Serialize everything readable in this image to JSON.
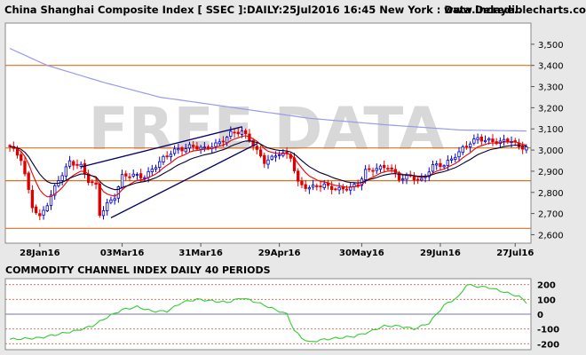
{
  "header": {
    "title": "China Shanghai Composite Index [ SSEC ]:DAILY:25Jul2016 16:45 New York : Data Delaye..",
    "site": "www.incrediblecharts.com"
  },
  "watermark": "FREE DATA",
  "colors": {
    "background": "#e8e8e8",
    "plot_bg": "#ffffff",
    "up_candle": "#0000cc",
    "down_candle": "#dd0000",
    "ma_long": "#9999ee",
    "ma_mid": "#000033",
    "ma_short": "#ee0000",
    "support": "#e07020",
    "trendline": "#000066",
    "cci": "#33cc33",
    "watermark": "#d8d8d8"
  },
  "chart_data": [
    {
      "type": "candlestick",
      "ylim": [
        2560,
        3600
      ],
      "yticks": [
        2600,
        2700,
        2800,
        2900,
        3000,
        3100,
        3200,
        3300,
        3400,
        3500
      ],
      "ytick_labels": [
        "2,600",
        "2,700",
        "2,800",
        "2,900",
        "3,000",
        "3,100",
        "3,200",
        "3,300",
        "3,400",
        "3,500"
      ],
      "x_dates": [
        "28Jan16",
        "03Mar16",
        "31Mar16",
        "29Apr16",
        "30May16",
        "29Jun16",
        "27Jul16"
      ],
      "x_date_index": [
        8,
        30,
        51,
        72,
        94,
        115,
        135
      ],
      "num_bars": 139,
      "support_lines": [
        3400,
        3010,
        2855,
        2630
      ],
      "trendlines": [
        {
          "from": [
            19,
            2920
          ],
          "to": [
            62,
            3110
          ]
        },
        {
          "from": [
            27,
            2680
          ],
          "to": [
            66,
            3030
          ]
        }
      ],
      "close_anchors": [
        [
          0,
          3010
        ],
        [
          3,
          2960
        ],
        [
          6,
          2740
        ],
        [
          8,
          2680
        ],
        [
          10,
          2740
        ],
        [
          13,
          2860
        ],
        [
          16,
          2950
        ],
        [
          19,
          2920
        ],
        [
          21,
          2850
        ],
        [
          23,
          2830
        ],
        [
          24,
          2700
        ],
        [
          26,
          2750
        ],
        [
          28,
          2780
        ],
        [
          30,
          2870
        ],
        [
          33,
          2880
        ],
        [
          36,
          2880
        ],
        [
          40,
          2940
        ],
        [
          44,
          3000
        ],
        [
          48,
          3020
        ],
        [
          52,
          3000
        ],
        [
          56,
          3040
        ],
        [
          59,
          3080
        ],
        [
          62,
          3080
        ],
        [
          64,
          3050
        ],
        [
          66,
          3000
        ],
        [
          68,
          2950
        ],
        [
          70,
          2960
        ],
        [
          72,
          2980
        ],
        [
          75,
          2970
        ],
        [
          77,
          2850
        ],
        [
          80,
          2820
        ],
        [
          84,
          2830
        ],
        [
          88,
          2820
        ],
        [
          91,
          2820
        ],
        [
          93,
          2830
        ],
        [
          95,
          2900
        ],
        [
          98,
          2920
        ],
        [
          101,
          2920
        ],
        [
          104,
          2860
        ],
        [
          107,
          2880
        ],
        [
          110,
          2860
        ],
        [
          113,
          2920
        ],
        [
          116,
          2930
        ],
        [
          119,
          2980
        ],
        [
          122,
          3020
        ],
        [
          125,
          3050
        ],
        [
          128,
          3050
        ],
        [
          131,
          3040
        ],
        [
          134,
          3040
        ],
        [
          136,
          3010
        ],
        [
          138,
          3020
        ]
      ],
      "ma_long_anchors": [
        [
          0,
          3480
        ],
        [
          10,
          3400
        ],
        [
          25,
          3320
        ],
        [
          40,
          3250
        ],
        [
          60,
          3200
        ],
        [
          80,
          3150
        ],
        [
          100,
          3120
        ],
        [
          120,
          3095
        ],
        [
          138,
          3090
        ]
      ]
    },
    {
      "type": "line",
      "title": "COMMODITY CHANNEL INDEX DAILY 40 PERIODS",
      "ylim": [
        -240,
        240
      ],
      "yticks": [
        200,
        100,
        0,
        -100,
        -200
      ],
      "ytick_labels": [
        "200",
        "100",
        "0",
        "-100",
        "-200"
      ],
      "reference_lines": [
        200,
        100,
        0,
        -100,
        -200
      ],
      "series": [
        {
          "anchors": [
            [
              0,
              -170
            ],
            [
              8,
              -160
            ],
            [
              14,
              -130
            ],
            [
              18,
              -110
            ],
            [
              22,
              -80
            ],
            [
              26,
              -20
            ],
            [
              30,
              30
            ],
            [
              34,
              50
            ],
            [
              38,
              20
            ],
            [
              42,
              20
            ],
            [
              46,
              80
            ],
            [
              50,
              100
            ],
            [
              54,
              90
            ],
            [
              58,
              80
            ],
            [
              62,
              110
            ],
            [
              66,
              80
            ],
            [
              70,
              40
            ],
            [
              74,
              0
            ],
            [
              76,
              -110
            ],
            [
              78,
              -160
            ],
            [
              80,
              -190
            ],
            [
              84,
              -170
            ],
            [
              88,
              -160
            ],
            [
              92,
              -150
            ],
            [
              96,
              -120
            ],
            [
              100,
              -80
            ],
            [
              104,
              -80
            ],
            [
              108,
              -100
            ],
            [
              112,
              -60
            ],
            [
              116,
              60
            ],
            [
              120,
              120
            ],
            [
              122,
              200
            ],
            [
              124,
              190
            ],
            [
              128,
              180
            ],
            [
              132,
              150
            ],
            [
              136,
              120
            ],
            [
              138,
              80
            ]
          ]
        }
      ]
    }
  ]
}
